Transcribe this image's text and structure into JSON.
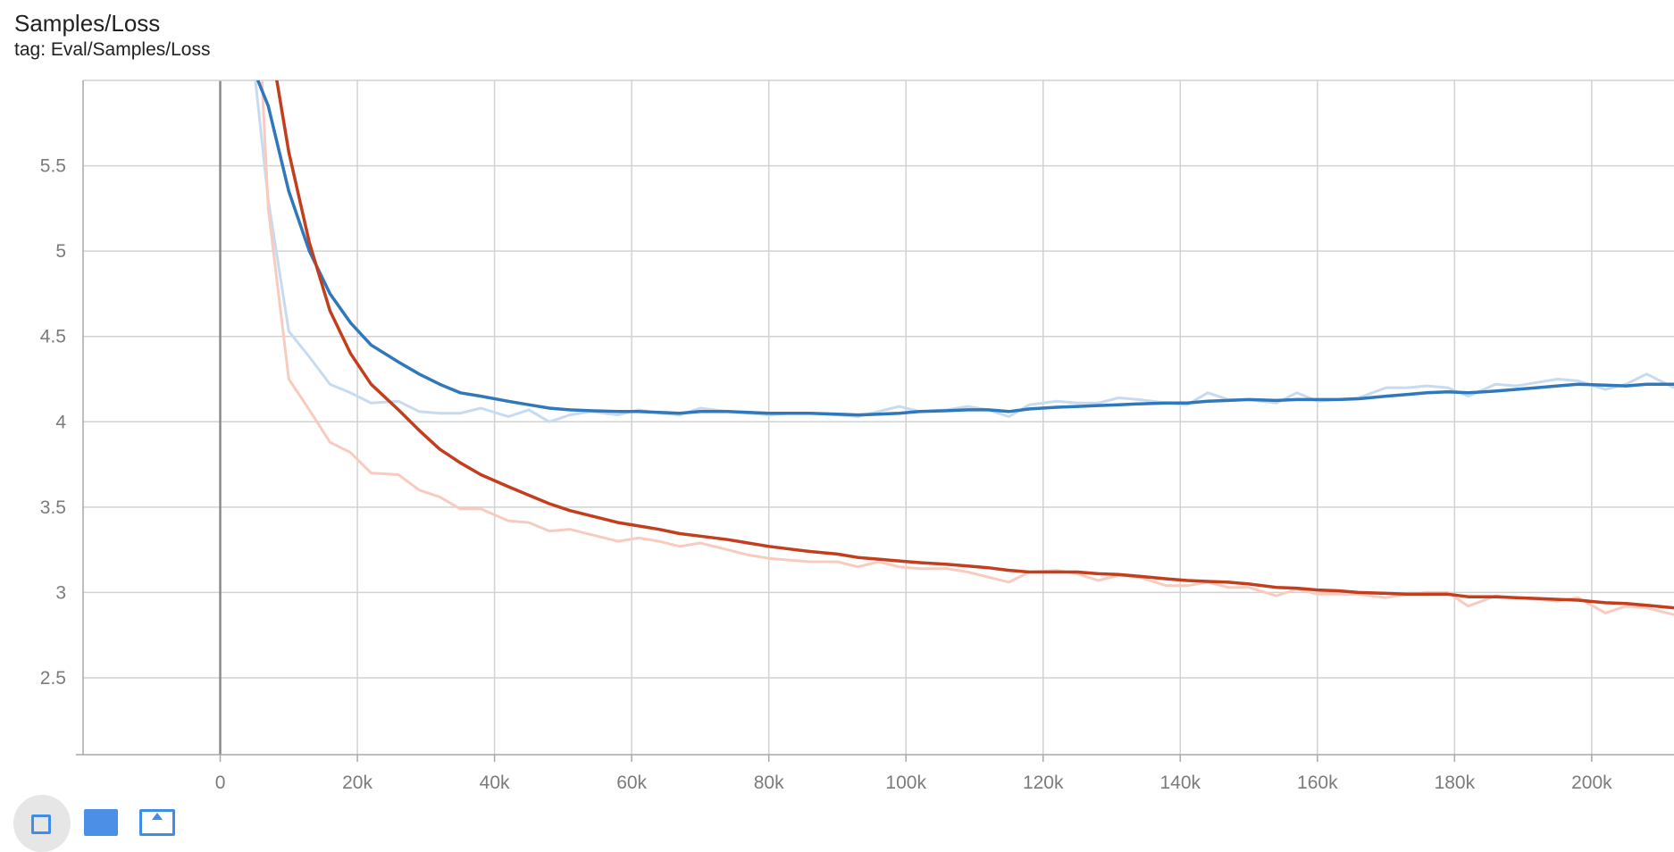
{
  "card": {
    "title": "Samples/Loss",
    "tag": "tag: Eval/Samples/Loss"
  },
  "toolbar": {
    "icons": [
      "fit-to-data-icon",
      "log-scale-icon",
      "download-icon"
    ]
  },
  "chart_data": {
    "type": "line",
    "title": "Samples/Loss",
    "xlabel": "",
    "ylabel": "",
    "xlim": [
      -20000,
      212000
    ],
    "ylim": [
      2.05,
      6.0
    ],
    "x_ticks": [
      0,
      20000,
      40000,
      60000,
      80000,
      100000,
      120000,
      140000,
      160000,
      180000,
      200000
    ],
    "x_tick_labels": [
      "0",
      "20k",
      "40k",
      "60k",
      "80k",
      "100k",
      "120k",
      "140k",
      "160k",
      "180k",
      "200k"
    ],
    "y_ticks": [
      2.5,
      3,
      3.5,
      4,
      4.5,
      5,
      5.5
    ],
    "y_tick_labels": [
      "2.5",
      "3",
      "3.5",
      "4",
      "4.5",
      "5",
      "5.5"
    ],
    "grid": true,
    "legend": "none",
    "series": [
      {
        "color": "#2f78bb",
        "raw_color": "#c6dbef",
        "x": [
          5000,
          7000,
          10000,
          13000,
          16000,
          19000,
          22000,
          26000,
          29000,
          32000,
          35000,
          38000,
          42000,
          45000,
          48000,
          51000,
          54000,
          58000,
          61000,
          64000,
          67000,
          70000,
          74000,
          77000,
          80000,
          83000,
          86000,
          90000,
          93000,
          96000,
          99000,
          102000,
          106000,
          109000,
          112000,
          115000,
          118000,
          122000,
          125000,
          128000,
          131000,
          134000,
          138000,
          141000,
          144000,
          147000,
          150000,
          154000,
          157000,
          160000,
          163000,
          166000,
          170000,
          173000,
          176000,
          179000,
          182000,
          186000,
          189000,
          192000,
          195000,
          198000,
          202000,
          205000,
          208000,
          212000
        ],
        "smoothed": [
          6.05,
          5.85,
          5.35,
          5.0,
          4.75,
          4.58,
          4.45,
          4.35,
          4.28,
          4.22,
          4.17,
          4.15,
          4.12,
          4.1,
          4.08,
          4.07,
          4.065,
          4.06,
          4.06,
          4.055,
          4.05,
          4.06,
          4.06,
          4.055,
          4.05,
          4.05,
          4.05,
          4.045,
          4.04,
          4.045,
          4.05,
          4.06,
          4.065,
          4.07,
          4.07,
          4.06,
          4.075,
          4.085,
          4.09,
          4.095,
          4.1,
          4.105,
          4.11,
          4.11,
          4.12,
          4.125,
          4.13,
          4.125,
          4.13,
          4.13,
          4.13,
          4.135,
          4.15,
          4.16,
          4.17,
          4.175,
          4.17,
          4.18,
          4.19,
          4.2,
          4.21,
          4.22,
          4.215,
          4.21,
          4.22,
          4.22
        ],
        "raw": [
          6.05,
          5.3,
          4.53,
          4.38,
          4.22,
          4.17,
          4.11,
          4.12,
          4.06,
          4.05,
          4.05,
          4.08,
          4.03,
          4.07,
          4.0,
          4.04,
          4.06,
          4.04,
          4.07,
          4.05,
          4.04,
          4.08,
          4.06,
          4.05,
          4.04,
          4.05,
          4.05,
          4.04,
          4.03,
          4.06,
          4.09,
          4.06,
          4.07,
          4.09,
          4.07,
          4.03,
          4.1,
          4.12,
          4.11,
          4.11,
          4.14,
          4.13,
          4.11,
          4.1,
          4.17,
          4.13,
          4.13,
          4.11,
          4.17,
          4.12,
          4.13,
          4.14,
          4.2,
          4.2,
          4.21,
          4.2,
          4.15,
          4.22,
          4.21,
          4.23,
          4.25,
          4.24,
          4.19,
          4.22,
          4.28,
          4.2
        ]
      },
      {
        "color": "#c23e1d",
        "raw_color": "#f7cbbf",
        "x": [
          5000,
          7000,
          10000,
          13000,
          16000,
          19000,
          22000,
          26000,
          29000,
          32000,
          35000,
          38000,
          42000,
          45000,
          48000,
          51000,
          54000,
          58000,
          61000,
          64000,
          67000,
          70000,
          74000,
          77000,
          80000,
          83000,
          86000,
          90000,
          93000,
          96000,
          99000,
          102000,
          106000,
          109000,
          112000,
          115000,
          118000,
          122000,
          125000,
          128000,
          131000,
          134000,
          138000,
          141000,
          144000,
          147000,
          150000,
          154000,
          157000,
          160000,
          163000,
          166000,
          170000,
          173000,
          176000,
          179000,
          182000,
          186000,
          189000,
          192000,
          195000,
          198000,
          202000,
          205000,
          208000,
          212000
        ],
        "smoothed": [
          6.9,
          6.3,
          5.58,
          5.05,
          4.65,
          4.4,
          4.22,
          4.07,
          3.95,
          3.84,
          3.76,
          3.69,
          3.62,
          3.57,
          3.52,
          3.48,
          3.45,
          3.41,
          3.39,
          3.37,
          3.345,
          3.33,
          3.31,
          3.29,
          3.27,
          3.255,
          3.24,
          3.225,
          3.205,
          3.195,
          3.185,
          3.175,
          3.165,
          3.155,
          3.145,
          3.13,
          3.12,
          3.12,
          3.12,
          3.11,
          3.105,
          3.095,
          3.08,
          3.07,
          3.065,
          3.06,
          3.05,
          3.03,
          3.025,
          3.015,
          3.01,
          3.0,
          2.995,
          2.99,
          2.99,
          2.99,
          2.975,
          2.975,
          2.97,
          2.965,
          2.96,
          2.955,
          2.94,
          2.935,
          2.925,
          2.91
        ],
        "raw": [
          6.9,
          5.25,
          4.25,
          4.07,
          3.88,
          3.82,
          3.7,
          3.69,
          3.6,
          3.56,
          3.49,
          3.49,
          3.42,
          3.41,
          3.36,
          3.37,
          3.34,
          3.3,
          3.32,
          3.3,
          3.27,
          3.29,
          3.25,
          3.22,
          3.2,
          3.19,
          3.18,
          3.18,
          3.15,
          3.18,
          3.15,
          3.14,
          3.14,
          3.12,
          3.09,
          3.06,
          3.12,
          3.13,
          3.11,
          3.07,
          3.1,
          3.09,
          3.04,
          3.04,
          3.06,
          3.03,
          3.03,
          2.98,
          3.02,
          2.99,
          2.99,
          2.99,
          2.97,
          2.99,
          3.0,
          3.0,
          2.92,
          2.98,
          2.97,
          2.96,
          2.95,
          2.97,
          2.88,
          2.92,
          2.91,
          2.87
        ]
      }
    ]
  }
}
